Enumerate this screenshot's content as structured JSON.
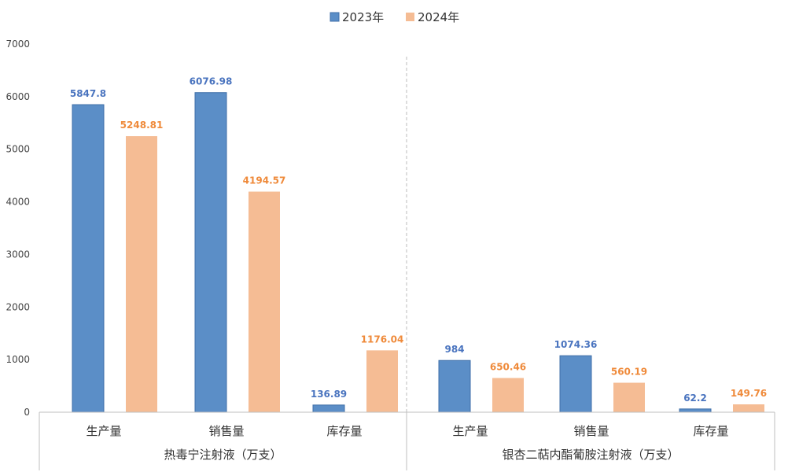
{
  "chart_data": {
    "type": "bar",
    "title": "",
    "xlabel": "",
    "ylabel": "",
    "ylim": [
      0,
      7000
    ],
    "yticks": [
      0,
      1000,
      2000,
      3000,
      4000,
      5000,
      6000,
      7000
    ],
    "legend_position": "top-center",
    "grid": false,
    "groups": [
      {
        "name": "热毒宁注射液（万支）",
        "categories": [
          "生产量",
          "销售量",
          "库存量"
        ]
      },
      {
        "name": "银杏二萜内酯葡胺注射液（万支）",
        "categories": [
          "生产量",
          "销售量",
          "库存量"
        ]
      }
    ],
    "series": [
      {
        "name": "2023年",
        "color": "#5b8ec7",
        "label_color": "#4a74bf",
        "values": [
          5847.8,
          6076.98,
          136.89,
          984,
          1074.36,
          62.2
        ],
        "labels": [
          "5847.8",
          "6076.98",
          "136.89",
          "984",
          "1074.36",
          "62.2"
        ]
      },
      {
        "name": "2024年",
        "color": "#f5bc94",
        "label_color": "#ef8a3a",
        "values": [
          5248.81,
          4194.57,
          1176.04,
          650.46,
          560.19,
          149.76
        ],
        "labels": [
          "5248.81",
          "4194.57",
          "1176.04",
          "650.46",
          "560.19",
          "149.76"
        ]
      }
    ]
  }
}
